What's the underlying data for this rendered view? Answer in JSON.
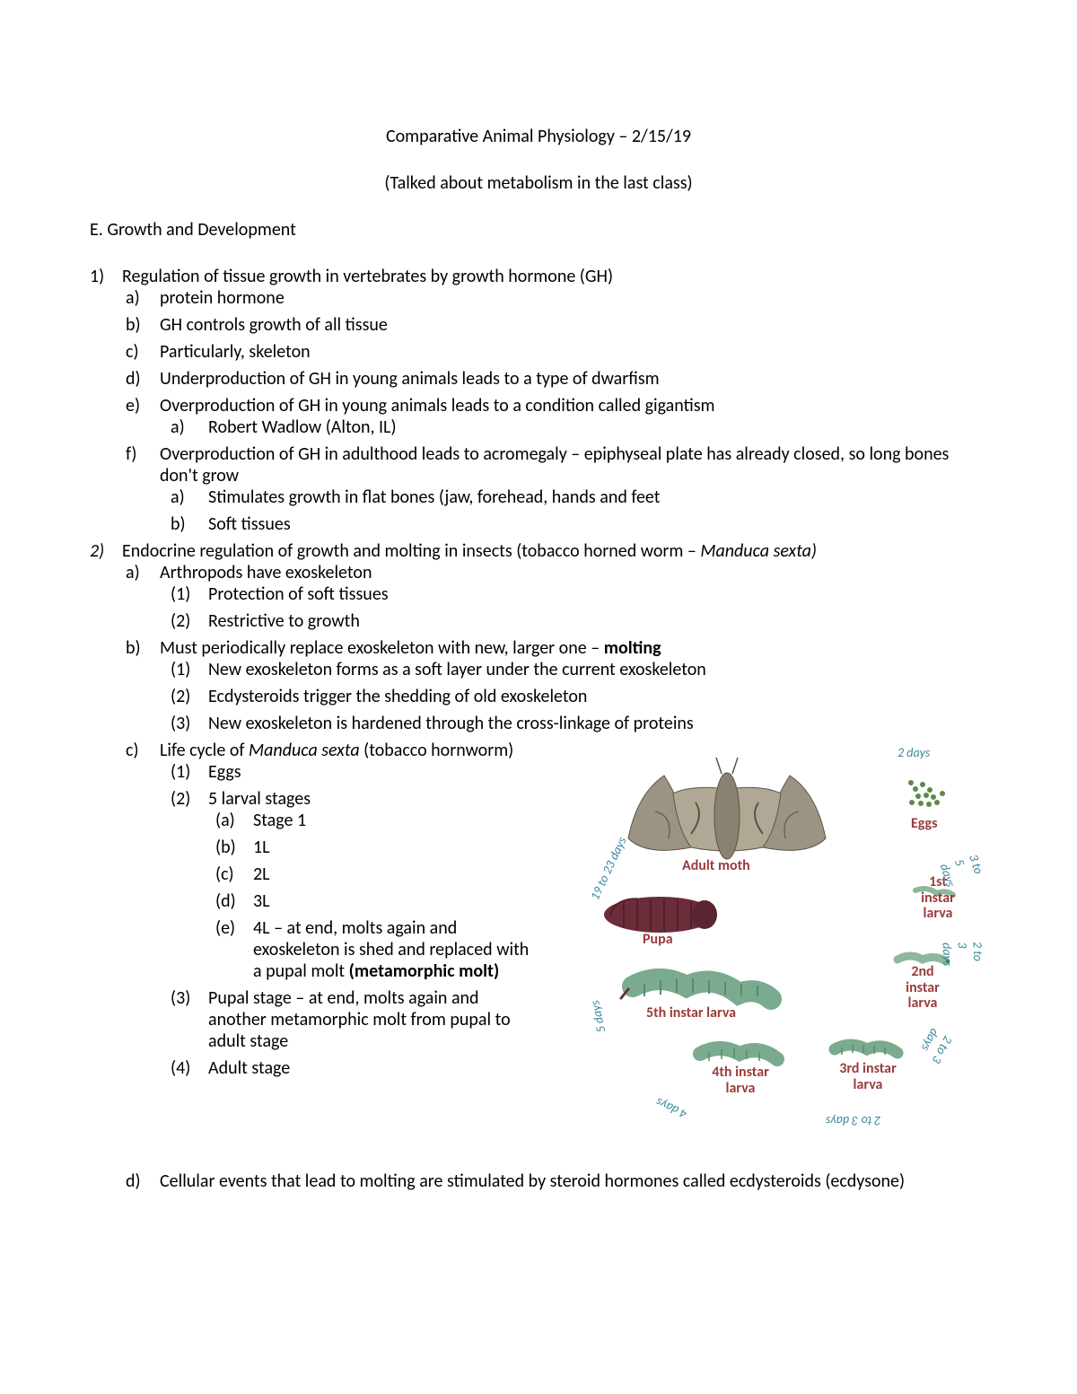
{
  "title": "Comparative Animal Physiology – 2/15/19",
  "subtitle": "(Talked about metabolism in the last class)",
  "section_heading": "E. Growth and Development",
  "item1": {
    "text": "Regulation of tissue growth in vertebrates by growth hormone (GH)",
    "a": "protein hormone",
    "b": "GH controls growth of all tissue",
    "c": "Particularly, skeleton",
    "d": "Underproduction of GH in young animals leads to a type of dwarfism",
    "e": "Overproduction of GH in young animals leads to a condition called gigantism",
    "e_a": "Robert Wadlow (Alton, IL)",
    "f": "Overproduction of GH in adulthood leads to acromegaly – epiphyseal plate has already closed, so long bones don't grow",
    "f_a": "Stimulates growth in flat bones (jaw, forehead, hands and feet",
    "f_b": "Soft tissues"
  },
  "item2": {
    "text_pre": "Endocrine regulation of growth and molting in insects (tobacco horned worm – ",
    "text_species": "Manduca sexta)",
    "a": "Arthropods have exoskeleton",
    "a_1": "Protection of soft tissues",
    "a_2": "Restrictive to growth",
    "b_pre": "Must periodically replace exoskeleton with new, larger one – ",
    "b_bold": "molting",
    "b_1": "New exoskeleton forms as a soft layer under the current exoskeleton",
    "b_2": "Ecdysteroids trigger the shedding of old exoskeleton",
    "b_3": "New exoskeleton is hardened through the cross-linkage of proteins",
    "c_pre": "Life cycle of ",
    "c_species": "Manduca sexta",
    "c_post": " (tobacco hornworm)",
    "c_1": "Eggs",
    "c_2": "5 larval stages",
    "c_2_a": "Stage 1",
    "c_2_b": "1L",
    "c_2_c": "2L",
    "c_2_d": "3L",
    "c_2_e_pre": "4L – at end, molts again and exoskeleton is shed and replaced with a pupal molt ",
    "c_2_e_bold": "(metamorphic molt)",
    "c_3": "Pupal stage – at end, molts again and another metamorphic molt from pupal to adult stage",
    "c_4": "Adult stage",
    "d": "Cellular events that lead to molting are stimulated by steroid hormones called ecdysteroids (ecdysone)"
  },
  "diagram": {
    "stages": {
      "adult": "Adult moth",
      "eggs": "Eggs",
      "l1": "1st instar larva",
      "l2": "2nd instar larva",
      "l3": "3rd instar larva",
      "l4": "4th instar larva",
      "l5": "5th instar larva",
      "pupa": "Pupa"
    },
    "durations": {
      "d1": "2 days",
      "d2": "3 to 5 days",
      "d3": "2 to 3 days",
      "d4": "2 to 3 days",
      "d5": "2 to 3 days",
      "d6": "4 days",
      "d7": "5 days",
      "d8": "19 to 23 days"
    },
    "colors": {
      "label": "#9a3b3b",
      "duration": "#3a8a9e",
      "moth_body": "#9b9484",
      "moth_dark": "#5a5448",
      "pupa": "#6b2d3a",
      "larva": "#7aaa8f",
      "larva_small": "#8fb89a",
      "eggs": "#5a8a4a"
    }
  }
}
